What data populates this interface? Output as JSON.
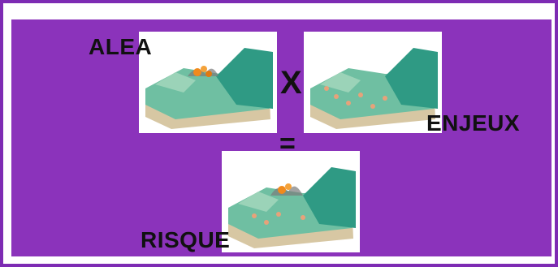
{
  "labels": {
    "alea": "ALEA",
    "enjeux": "ENJEUX",
    "risque": "RISQUE"
  },
  "operators": {
    "multiply": "X",
    "equals": "="
  },
  "colors": {
    "background": "#8b33bb",
    "frame": "#ffffff",
    "text": "#111111",
    "terrain": "#3aa58f",
    "hazard": "#f08a1c"
  }
}
